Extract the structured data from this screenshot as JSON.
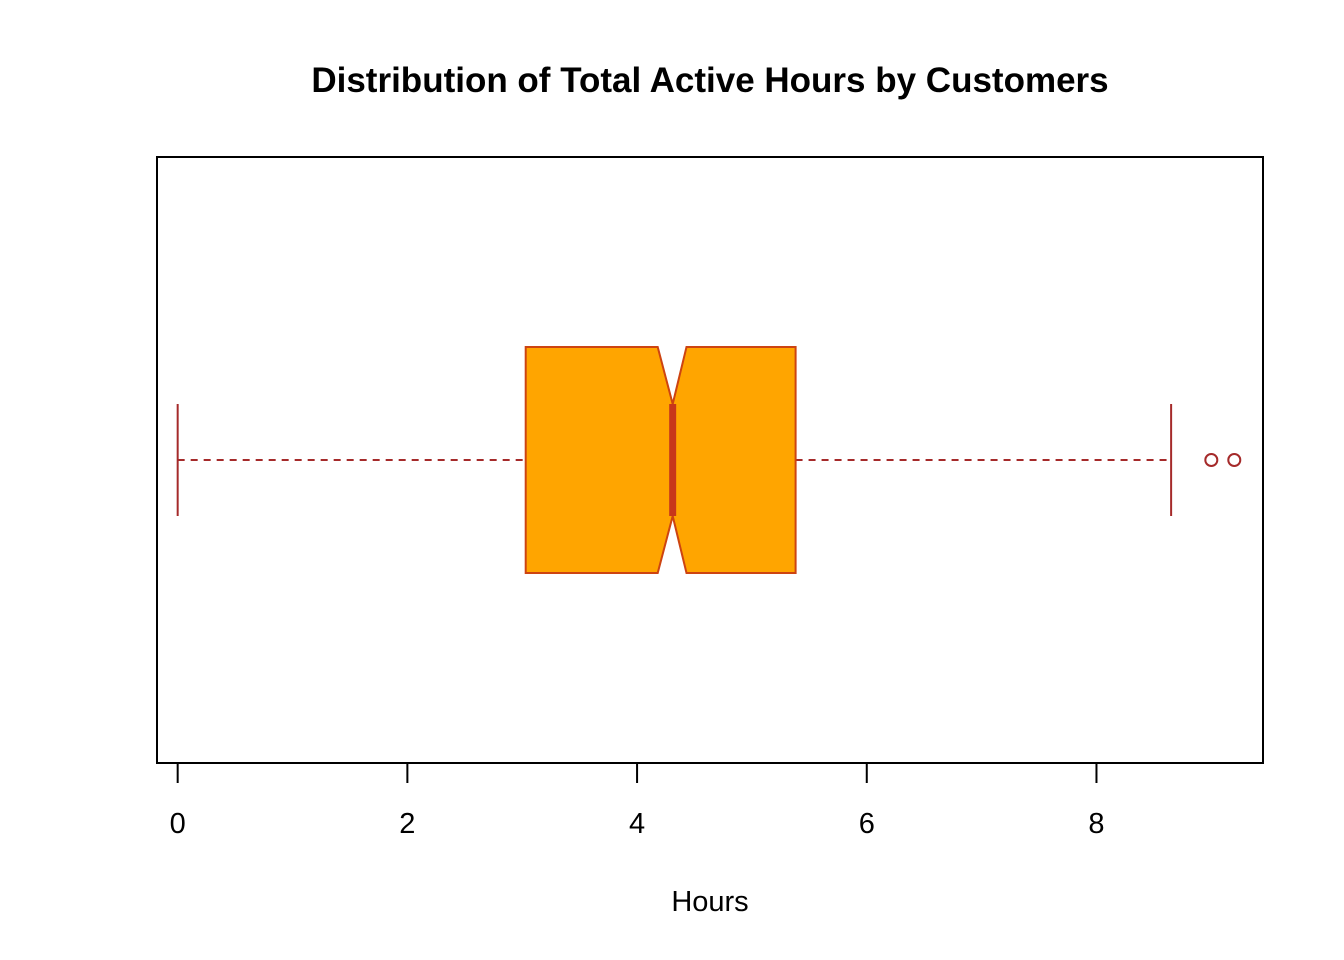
{
  "chart_data": {
    "type": "boxplot",
    "orientation": "horizontal",
    "notched": true,
    "title": "Distribution of Total Active Hours by Customers",
    "xlabel": "Hours",
    "ylabel": "",
    "xlim": [
      -0.18,
      9.45
    ],
    "x_ticks": [
      0,
      2,
      4,
      6,
      8
    ],
    "x_tick_labels": [
      "0",
      "2",
      "4",
      "6",
      "8"
    ],
    "grid": false,
    "legend": "none",
    "box": {
      "whisker_low": 0,
      "q1": 3.03,
      "median": 4.31,
      "q3": 5.38,
      "whisker_high": 8.65,
      "notch_low": 4.18,
      "notch_high": 4.43,
      "outliers": [
        9.0,
        9.2
      ]
    },
    "colors": {
      "box_fill": "#FFA500",
      "box_border": "#CD4411",
      "median": "#C8371A",
      "whisker": "#A52A2A",
      "outlier": "#A52A2A",
      "frame": "#000000"
    }
  }
}
